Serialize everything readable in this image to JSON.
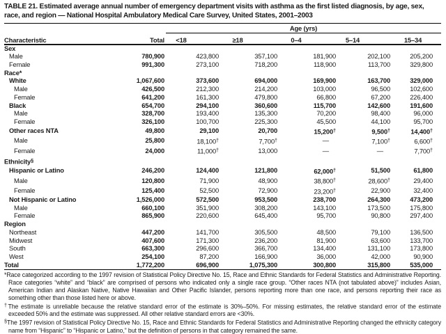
{
  "title": "TABLE 21. Estimated average annual number of emergency department visits with asthma as the first listed diagnosis, by age, sex, race, and region — National Hospital Ambulatory Medical Care Survey, United States, 2001–2003",
  "table": {
    "age_group_label": "Age (yrs)",
    "columns": [
      "Characteristic",
      "Total",
      "<18",
      "≥18",
      "0–4",
      "5–14",
      "15–34"
    ],
    "rows": [
      {
        "label": "Sex",
        "style": "group",
        "indent": 0,
        "values": [
          "",
          "",
          "",
          "",
          "",
          ""
        ]
      },
      {
        "label": "Male",
        "style": "normal",
        "indent": 1,
        "values": [
          "780,900",
          "423,800",
          "357,100",
          "181,900",
          "202,100",
          "205,200"
        ]
      },
      {
        "label": "Female",
        "style": "normal",
        "indent": 1,
        "values": [
          "991,300",
          "273,100",
          "718,200",
          "118,900",
          "113,700",
          "329,800"
        ]
      },
      {
        "label": "Race*",
        "style": "group",
        "indent": 0,
        "values": [
          "",
          "",
          "",
          "",
          "",
          ""
        ]
      },
      {
        "label": "White",
        "style": "bold",
        "indent": 1,
        "values": [
          "1,067,600",
          "373,600",
          "694,000",
          "169,900",
          "163,700",
          "329,000"
        ]
      },
      {
        "label": "Male",
        "style": "normal",
        "indent": 2,
        "values": [
          "426,500",
          "212,300",
          "214,200",
          "103,000",
          "96,500",
          "102,600"
        ]
      },
      {
        "label": "Female",
        "style": "normal",
        "indent": 2,
        "values": [
          "641,200",
          "161,300",
          "479,800",
          "66,800",
          "67,200",
          "226,400"
        ]
      },
      {
        "label": "Black",
        "style": "bold",
        "indent": 1,
        "values": [
          "654,700",
          "294,100",
          "360,600",
          "115,700",
          "142,600",
          "191,600"
        ]
      },
      {
        "label": "Male",
        "style": "normal",
        "indent": 2,
        "values": [
          "328,700",
          "193,400",
          "135,300",
          "70,200",
          "98,400",
          "96,000"
        ]
      },
      {
        "label": "Female",
        "style": "normal",
        "indent": 2,
        "values": [
          "326,100",
          "100,700",
          "225,300",
          "45,500",
          "44,100",
          "95,700"
        ]
      },
      {
        "label": "Other races NTA",
        "style": "bold",
        "indent": 1,
        "values": [
          "49,800",
          "29,100",
          "20,700",
          "15,200†",
          "9,500†",
          "14,400†"
        ]
      },
      {
        "label": "Male",
        "style": "normal",
        "indent": 2,
        "values": [
          "25,800",
          "18,100†",
          "7,700†",
          "—",
          "7,100†",
          "6,600†"
        ]
      },
      {
        "label": "Female",
        "style": "normal",
        "indent": 2,
        "values": [
          "24,000",
          "11,000†",
          "13,000",
          "—",
          "—",
          "7,700†"
        ]
      },
      {
        "label": "Ethnicity§",
        "style": "group",
        "indent": 0,
        "values": [
          "",
          "",
          "",
          "",
          "",
          ""
        ]
      },
      {
        "label": "Hispanic or Latino",
        "style": "bold",
        "indent": 1,
        "values": [
          "246,200",
          "124,400",
          "121,800",
          "62,000†",
          "51,500",
          "61,800"
        ]
      },
      {
        "label": "Male",
        "style": "normal",
        "indent": 2,
        "values": [
          "120,800",
          "71,900",
          "48,900",
          "38,800†",
          "28,600†",
          "29,400"
        ]
      },
      {
        "label": "Female",
        "style": "normal",
        "indent": 2,
        "values": [
          "125,400",
          "52,500",
          "72,900",
          "23,200†",
          "22,900",
          "32,400"
        ]
      },
      {
        "label": "Not Hispanic or Latino",
        "style": "bold",
        "indent": 1,
        "values": [
          "1,526,000",
          "572,500",
          "953,500",
          "238,700",
          "264,300",
          "473,200"
        ]
      },
      {
        "label": "Male",
        "style": "normal",
        "indent": 2,
        "values": [
          "660,100",
          "351,900",
          "308,200",
          "143,100",
          "173,500",
          "175,800"
        ]
      },
      {
        "label": "Female",
        "style": "normal",
        "indent": 2,
        "values": [
          "865,900",
          "220,600",
          "645,400",
          "95,700",
          "90,800",
          "297,400"
        ]
      },
      {
        "label": "Region",
        "style": "group",
        "indent": 0,
        "values": [
          "",
          "",
          "",
          "",
          "",
          ""
        ]
      },
      {
        "label": "Northeast",
        "style": "normal",
        "indent": 1,
        "values": [
          "447,200",
          "141,700",
          "305,500",
          "48,500",
          "79,100",
          "136,500"
        ]
      },
      {
        "label": "Midwest",
        "style": "normal",
        "indent": 1,
        "values": [
          "407,600",
          "171,300",
          "236,200",
          "81,900",
          "63,600",
          "133,700"
        ]
      },
      {
        "label": "South",
        "style": "normal",
        "indent": 1,
        "values": [
          "663,300",
          "296,600",
          "366,700",
          "134,400",
          "131,100",
          "173,800"
        ]
      },
      {
        "label": "West",
        "style": "normal",
        "indent": 1,
        "values": [
          "254,100",
          "87,200",
          "166,900",
          "36,000",
          "42,000",
          "90,900"
        ]
      },
      {
        "label": "Total",
        "style": "bold",
        "indent": 0,
        "values": [
          "1,772,200",
          "696,900",
          "1,075,300",
          "300,800",
          "315,800",
          "535,000"
        ]
      }
    ]
  },
  "footnotes": [
    {
      "marker": "*",
      "text": "Race categorized according to the 1997 revision of Statistical Policy Directive No. 15, Race and Ethnic Standards for Federal Statistics and Administrative Reporting. Race categories “white” and “black” are comprised of persons who indicated only a single race group. “Other races NTA (not tabulated above)” includes Asian, American Indian and Alaskan Native, Native Hawaiian and Other Pacific Islander, persons reporting more than one race, and persons reporting their race as something other than those listed here or above."
    },
    {
      "marker": "†",
      "text": "The estimate is unreliable because the relative standard error of the estimate is 30%–50%. For missing estimates, the relative standard error of the estimate exceeded 50% and the estimate was suppressed. All other relative standard errors are <30%."
    },
    {
      "marker": "§",
      "text": "The 1997 revision of Statistical Policy Directive No. 15, Race and Ethnic Standards for Federal Statistics and Administrative Reporting changed the ethnicity category name from “Hispanic” to “Hispanic or Latino,” but the definition of persons in that category remained the same."
    }
  ],
  "colors": {
    "text": "#1a1a1a",
    "rule": "#000000",
    "background": "#ffffff"
  }
}
